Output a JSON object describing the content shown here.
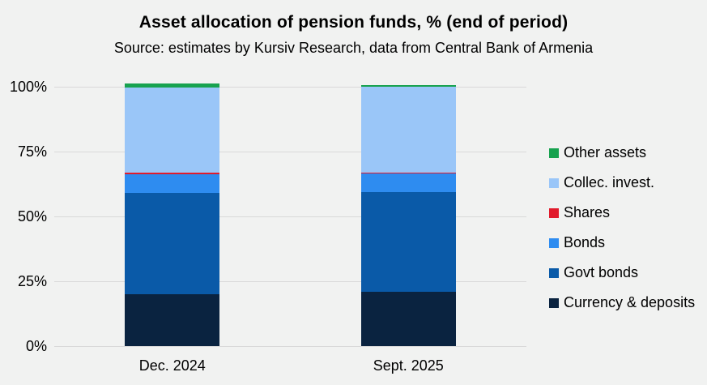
{
  "header": {
    "title": "Asset allocation of pension funds, % (end of period)",
    "subtitle": "Source: estimates by Kursiv Research, data from Central Bank of Armenia"
  },
  "colors": {
    "background": "#f1f2f1",
    "gridline": "#d9d9d9",
    "text": "#000000"
  },
  "chart_data": {
    "type": "bar",
    "stacked": true,
    "title": "Asset allocation of pension funds, % (end of period)",
    "subtitle": "Source: estimates by Kursiv Research, data from Central Bank of Armenia",
    "categories": [
      "Dec. 2024",
      "Sept. 2025"
    ],
    "series": [
      {
        "name": "Currency & deposits",
        "color": "#0a2340",
        "values": [
          20.0,
          21.0
        ]
      },
      {
        "name": "Govt bonds",
        "color": "#0a5aa8",
        "values": [
          39.0,
          38.5
        ]
      },
      {
        "name": "Bonds",
        "color": "#2e8cf0",
        "values": [
          7.2,
          7.0
        ]
      },
      {
        "name": "Shares",
        "color": "#e11b2c",
        "values": [
          0.6,
          0.5
        ]
      },
      {
        "name": "Collec. invest.",
        "color": "#9ac6f8",
        "values": [
          33.0,
          33.0
        ]
      },
      {
        "name": "Other assets",
        "color": "#17a24f",
        "values": [
          1.3,
          0.5
        ]
      }
    ],
    "ylabel": "",
    "xlabel": "",
    "ylim": [
      0,
      100
    ],
    "yticks": [
      0,
      25,
      50,
      75,
      100
    ],
    "ytick_labels": [
      "0%",
      "25%",
      "50%",
      "75%",
      "100%"
    ],
    "grid": true,
    "legend_position": "right",
    "legend_order_top_to_bottom": [
      "Other assets",
      "Collec. invest.",
      "Shares",
      "Bonds",
      "Govt bonds",
      "Currency & deposits"
    ]
  }
}
